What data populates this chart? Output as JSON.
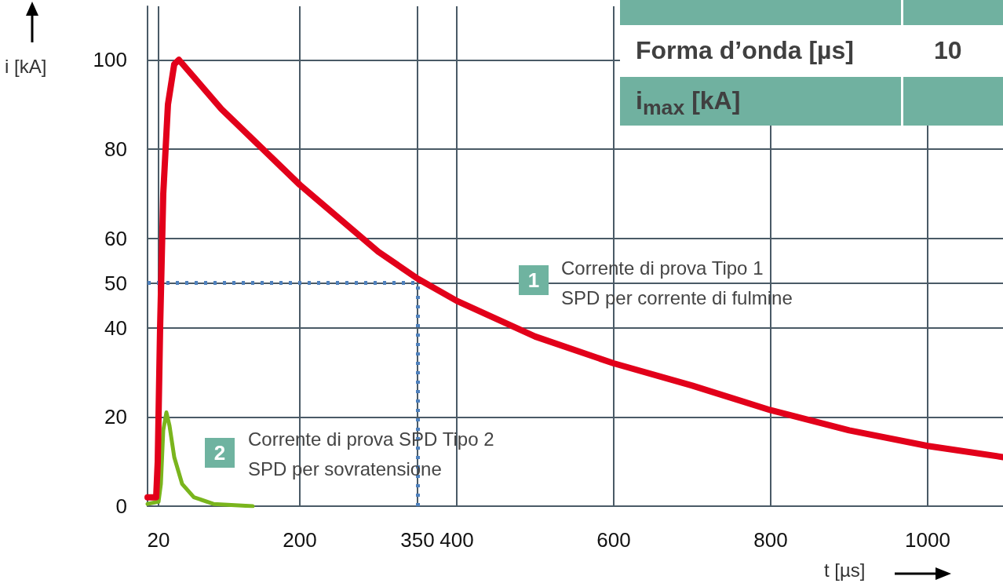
{
  "chart_data": {
    "type": "line",
    "xlabel": "t [µs]",
    "ylabel": "i [kA]",
    "xlim": [
      6,
      1096
    ],
    "ylim": [
      0,
      112
    ],
    "xticks": [
      20,
      200,
      350,
      400,
      600,
      800,
      1000
    ],
    "yticks": [
      0,
      20,
      40,
      50,
      60,
      80,
      100
    ],
    "grid": true,
    "marker": "none",
    "line_style": "solid",
    "series": [
      {
        "color": "#e2001a",
        "x": [
          6,
          17,
          19,
          22,
          26,
          32,
          40,
          46,
          100,
          200,
          300,
          350,
          400,
          500,
          600,
          700,
          800,
          900,
          1000,
          1096
        ],
        "values": [
          2,
          2,
          10,
          40,
          70,
          90,
          99,
          100,
          89,
          72,
          57,
          51,
          46,
          38,
          32,
          27,
          21.5,
          17,
          13.5,
          11
        ]
      },
      {
        "color": "#7ab51d",
        "x": [
          6,
          20,
          23,
          26,
          30,
          34,
          40,
          50,
          65,
          90,
          140
        ],
        "values": [
          0.5,
          1,
          5,
          17,
          21,
          18,
          11,
          5,
          2,
          0.5,
          0
        ]
      }
    ],
    "ref_lines": [
      {
        "axis": "y",
        "value": 50,
        "color": "#4f81bd",
        "line_style": "dotted"
      },
      {
        "axis": "x",
        "value": 350,
        "color": "#4f81bd",
        "line_style": "dotted"
      }
    ],
    "annotations": [
      "1",
      "Corrente di prova Tipo 1\nSPD per corrente di fulmine",
      "2",
      "Corrente di prova SPD Tipo 2\nSPD per sovratensione",
      "Forma d’onda [µs]",
      "10",
      "i$_{max}$ [kA]"
    ]
  }
}
